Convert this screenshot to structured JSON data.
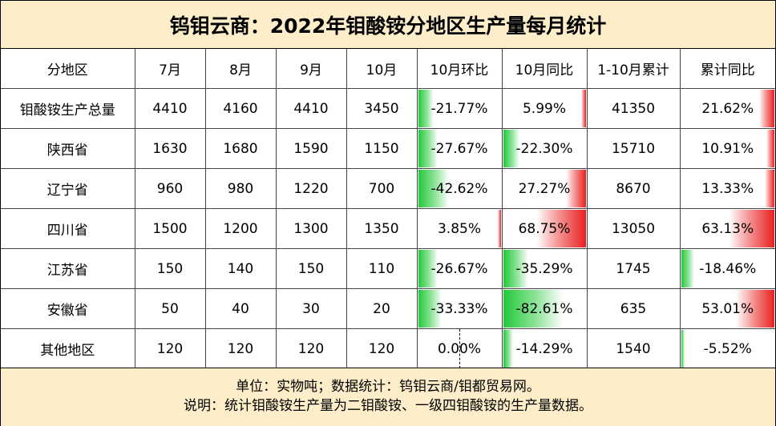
{
  "title": "钨钼云商：2022年钼酸铵分地区生产量每月统计",
  "headers": [
    "分地区",
    "7月",
    "8月",
    "9月",
    "10月",
    "10月环比",
    "10月同比",
    "1-10月累计",
    "累计同比"
  ],
  "rows": [
    {
      "region": "钼酸铵生产总量",
      "jul": "4410",
      "aug": "4160",
      "sep": "4410",
      "oct": "3450",
      "mom": "-21.77%",
      "mom_val": -21.77,
      "yoy": "5.99%",
      "yoy_val": 5.99,
      "cum": "41350",
      "cum_yoy": "21.62%",
      "cum_yoy_val": 21.62
    },
    {
      "region": "陕西省",
      "jul": "1630",
      "aug": "1680",
      "sep": "1590",
      "oct": "1150",
      "mom": "-27.67%",
      "mom_val": -27.67,
      "yoy": "-22.30%",
      "yoy_val": -22.3,
      "cum": "15710",
      "cum_yoy": "10.91%",
      "cum_yoy_val": 10.91
    },
    {
      "region": "辽宁省",
      "jul": "960",
      "aug": "980",
      "sep": "1220",
      "oct": "700",
      "mom": "-42.62%",
      "mom_val": -42.62,
      "yoy": "27.27%",
      "yoy_val": 27.27,
      "cum": "8670",
      "cum_yoy": "13.33%",
      "cum_yoy_val": 13.33
    },
    {
      "region": "四川省",
      "jul": "1500",
      "aug": "1200",
      "sep": "1300",
      "oct": "1350",
      "mom": "3.85%",
      "mom_val": 3.85,
      "yoy": "68.75%",
      "yoy_val": 68.75,
      "cum": "13050",
      "cum_yoy": "63.13%",
      "cum_yoy_val": 63.13
    },
    {
      "region": "江苏省",
      "jul": "150",
      "aug": "140",
      "sep": "150",
      "oct": "110",
      "mom": "-26.67%",
      "mom_val": -26.67,
      "yoy": "-35.29%",
      "yoy_val": -35.29,
      "cum": "1745",
      "cum_yoy": "-18.46%",
      "cum_yoy_val": -18.46
    },
    {
      "region": "安徽省",
      "jul": "50",
      "aug": "40",
      "sep": "30",
      "oct": "20",
      "mom": "-33.33%",
      "mom_val": -33.33,
      "yoy": "-82.61%",
      "yoy_val": -82.61,
      "cum": "635",
      "cum_yoy": "53.01%",
      "cum_yoy_val": 53.01
    },
    {
      "region": "其他地区",
      "jul": "120",
      "aug": "120",
      "sep": "120",
      "oct": "120",
      "mom": "0.00%",
      "mom_val": 0,
      "yoy": "-14.29%",
      "yoy_val": -14.29,
      "cum": "1540",
      "cum_yoy": "-5.52%",
      "cum_yoy_val": -5.52
    }
  ],
  "footer": {
    "line1": "单位：实物吨；数据统计：钨钼云商/钼都贸易网。",
    "line2": "说明：统计钼酸铵生产量为二钼酸铵、一级四钼酸铵的生产量数据。"
  },
  "colors": {
    "positive": "#e82020",
    "negative": "#22c93a",
    "header_bg": "#fdedc9"
  }
}
